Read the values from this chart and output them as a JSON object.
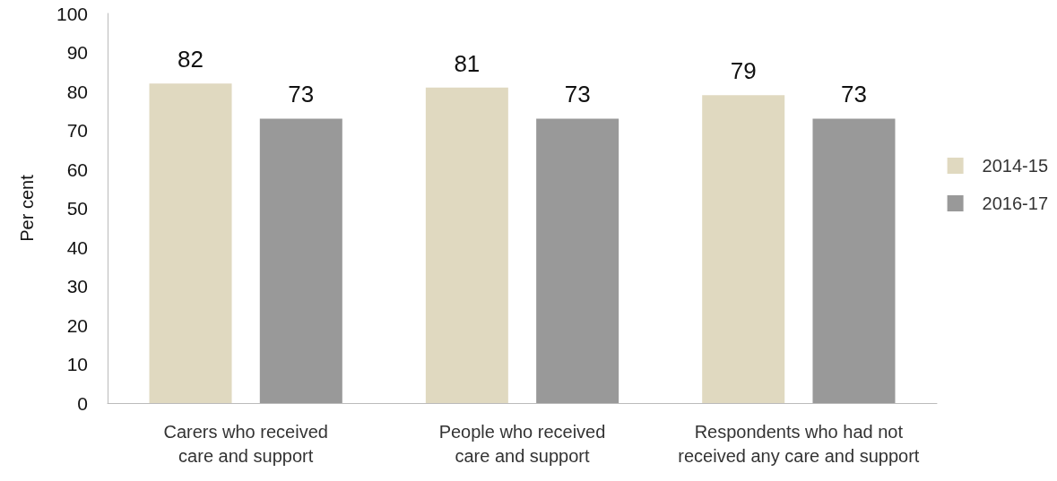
{
  "chart_data": {
    "type": "bar",
    "ylabel": "Per cent",
    "categories": [
      "Carers who received\ncare and support",
      "People who received\ncare and support",
      "Respondents who had not\nreceived any care and support"
    ],
    "series": [
      {
        "name": "2014-15",
        "color": "#e0d9c0",
        "values": [
          82,
          81,
          79
        ]
      },
      {
        "name": "2016-17",
        "color": "#999999",
        "values": [
          73,
          73,
          73
        ]
      }
    ],
    "ylim": [
      0,
      100
    ],
    "yticks": [
      0,
      10,
      20,
      30,
      40,
      50,
      60,
      70,
      80,
      90,
      100
    ],
    "grid": false,
    "legend": "right",
    "data_labels": true
  }
}
